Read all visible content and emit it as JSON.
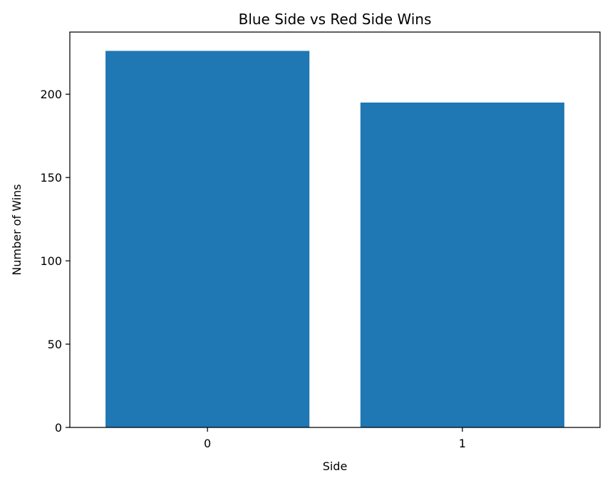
{
  "chart_data": {
    "type": "bar",
    "title": "Blue Side vs Red Side Wins",
    "xlabel": "Side",
    "ylabel": "Number of Wins",
    "categories": [
      "0",
      "1"
    ],
    "values": [
      226,
      195
    ],
    "ylim": [
      0,
      237.3
    ],
    "yticks": [
      0,
      50,
      100,
      150,
      200
    ],
    "bar_color": "#1f77b4",
    "axis_color": "#000000",
    "background": "#ffffff",
    "grid": false,
    "legend": "none"
  }
}
